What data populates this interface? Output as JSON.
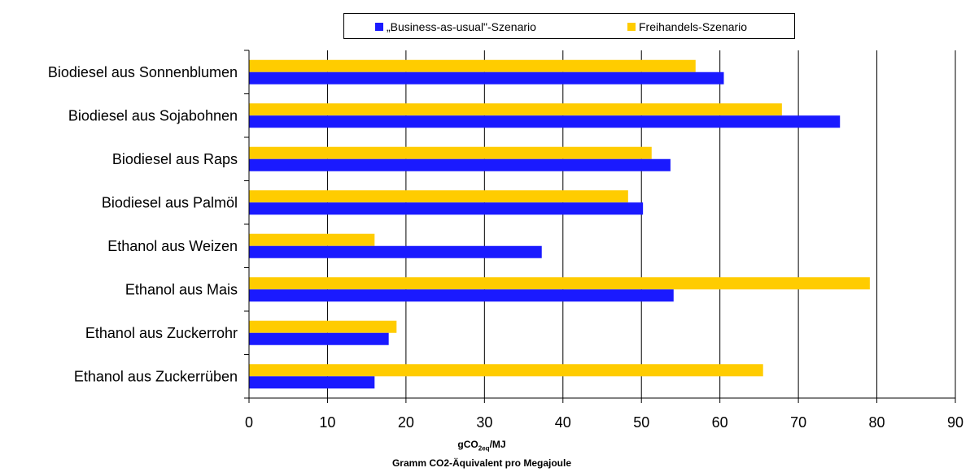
{
  "chart_data": {
    "type": "bar",
    "orientation": "horizontal",
    "categories": [
      "Biodiesel aus Sonnenblumen",
      "Biodiesel aus Sojabohnen",
      "Biodiesel aus Raps",
      "Biodiesel aus Palmöl",
      "Ethanol aus Weizen",
      "Ethanol aus Mais",
      "Ethanol aus Zuckerrohr",
      "Ethanol aus Zuckerrüben"
    ],
    "series": [
      {
        "name": "„Business-as-usual\"-Szenario",
        "color": "#1a1aff",
        "values": [
          60.5,
          75.3,
          53.7,
          50.2,
          37.3,
          54.1,
          17.8,
          16.0
        ]
      },
      {
        "name": "Freihandels-Szenario",
        "color": "#ffcc00",
        "values": [
          56.9,
          67.9,
          51.3,
          48.3,
          16.0,
          79.1,
          18.8,
          65.5
        ]
      }
    ],
    "xlim": [
      0,
      90
    ],
    "xticks": [
      0,
      10,
      20,
      30,
      40,
      50,
      60,
      70,
      80,
      90
    ],
    "xlabel_main": "gCO",
    "xlabel_sub": "2eq",
    "xlabel_suffix": "/MJ",
    "xlabel_line2": "Gramm CO2-Äquivalent pro Megajoule",
    "grid": "vertical",
    "legend_position": "top"
  }
}
